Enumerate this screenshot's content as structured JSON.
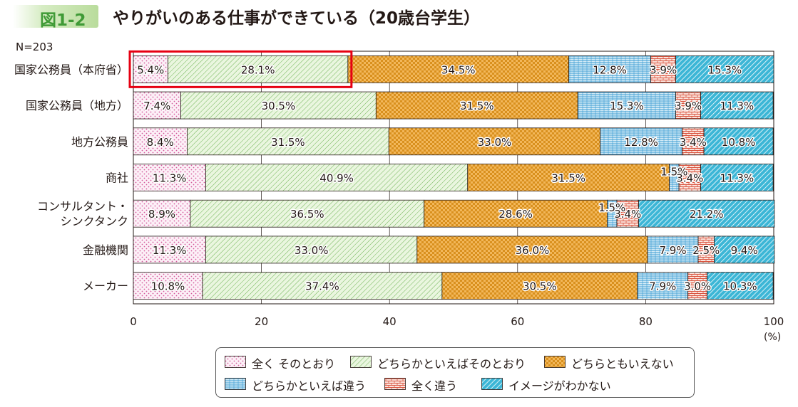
{
  "figure": {
    "label": "図1-2",
    "title": "やりがいのある仕事ができている（20歳台学生）",
    "sample": "N=203",
    "unit": "(%)"
  },
  "chart_data": {
    "type": "bar",
    "orientation": "horizontal",
    "stacked": true,
    "xlim": [
      0,
      100
    ],
    "xticks": [
      "0",
      "20",
      "40",
      "60",
      "80",
      "100"
    ],
    "categories": [
      "国家公務員（本府省）",
      "国家公務員（地方）",
      "地方公務員",
      "商社",
      "コンサルタント・\nシンクタンク",
      "金融機関",
      "メーカー"
    ],
    "series": [
      {
        "name": "全く そのとおり",
        "values": [
          5.4,
          7.4,
          8.4,
          11.3,
          8.9,
          11.3,
          10.8
        ]
      },
      {
        "name": "どちらかといえばそのとおり",
        "values": [
          28.1,
          30.5,
          31.5,
          40.9,
          36.5,
          33.0,
          37.4
        ]
      },
      {
        "name": "どちらともいえない",
        "values": [
          34.5,
          31.5,
          33.0,
          31.5,
          28.6,
          36.0,
          30.5
        ]
      },
      {
        "name": "どちらかといえば違う",
        "values": [
          12.8,
          15.3,
          12.8,
          1.5,
          1.5,
          7.9,
          7.9
        ]
      },
      {
        "name": "全く違う",
        "values": [
          3.9,
          3.9,
          3.4,
          3.4,
          3.4,
          2.5,
          3.0
        ]
      },
      {
        "name": "イメージがわかない",
        "values": [
          15.3,
          11.3,
          10.8,
          11.3,
          21.2,
          9.4,
          10.3
        ]
      }
    ],
    "highlight": {
      "category": "国家公務員（本府省）",
      "series": [
        "全く そのとおり",
        "どちらかといえばそのとおり"
      ]
    },
    "grid": true
  },
  "legend": {
    "items": [
      "全く そのとおり",
      "どちらかといえばそのとおり",
      "どちらともいえない",
      "どちらかといえば違う",
      "全く違う",
      "イメージがわかない"
    ]
  }
}
